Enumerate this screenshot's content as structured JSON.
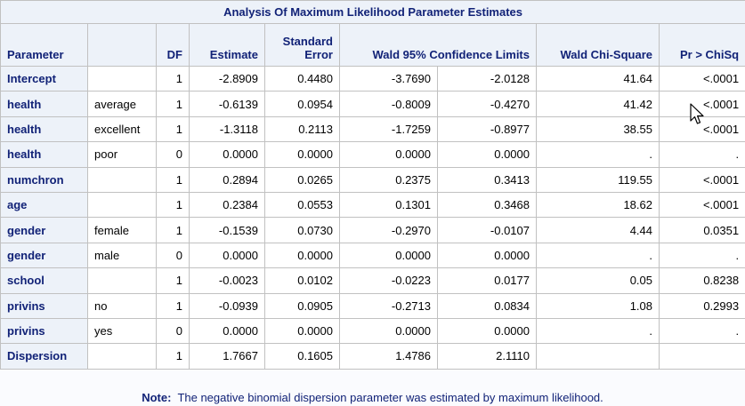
{
  "table": {
    "title": "Analysis Of Maximum Likelihood Parameter Estimates",
    "headers": {
      "parameter": "Parameter",
      "level": "",
      "df": "DF",
      "estimate": "Estimate",
      "std_error_line1": "Standard",
      "std_error_line2": "Error",
      "wald_ci": "Wald 95% Confidence Limits",
      "wald_chisq": "Wald Chi-Square",
      "pr_chisq": "Pr > ChiSq"
    },
    "rows": [
      {
        "parameter": "Intercept",
        "level": "",
        "df": "1",
        "estimate": "-2.8909",
        "std_error": "0.4480",
        "lower": "-3.7690",
        "upper": "-2.0128",
        "chisq": "41.64",
        "p": "<.0001"
      },
      {
        "parameter": "health",
        "level": "average",
        "df": "1",
        "estimate": "-0.6139",
        "std_error": "0.0954",
        "lower": "-0.8009",
        "upper": "-0.4270",
        "chisq": "41.42",
        "p": "<.0001"
      },
      {
        "parameter": "health",
        "level": "excellent",
        "df": "1",
        "estimate": "-1.3118",
        "std_error": "0.2113",
        "lower": "-1.7259",
        "upper": "-0.8977",
        "chisq": "38.55",
        "p": "<.0001"
      },
      {
        "parameter": "health",
        "level": "poor",
        "df": "0",
        "estimate": "0.0000",
        "std_error": "0.0000",
        "lower": "0.0000",
        "upper": "0.0000",
        "chisq": ".",
        "p": "."
      },
      {
        "parameter": "numchron",
        "level": "",
        "df": "1",
        "estimate": "0.2894",
        "std_error": "0.0265",
        "lower": "0.2375",
        "upper": "0.3413",
        "chisq": "119.55",
        "p": "<.0001"
      },
      {
        "parameter": "age",
        "level": "",
        "df": "1",
        "estimate": "0.2384",
        "std_error": "0.0553",
        "lower": "0.1301",
        "upper": "0.3468",
        "chisq": "18.62",
        "p": "<.0001"
      },
      {
        "parameter": "gender",
        "level": "female",
        "df": "1",
        "estimate": "-0.1539",
        "std_error": "0.0730",
        "lower": "-0.2970",
        "upper": "-0.0107",
        "chisq": "4.44",
        "p": "0.0351"
      },
      {
        "parameter": "gender",
        "level": "male",
        "df": "0",
        "estimate": "0.0000",
        "std_error": "0.0000",
        "lower": "0.0000",
        "upper": "0.0000",
        "chisq": ".",
        "p": "."
      },
      {
        "parameter": "school",
        "level": "",
        "df": "1",
        "estimate": "-0.0023",
        "std_error": "0.0102",
        "lower": "-0.0223",
        "upper": "0.0177",
        "chisq": "0.05",
        "p": "0.8238"
      },
      {
        "parameter": "privins",
        "level": "no",
        "df": "1",
        "estimate": "-0.0939",
        "std_error": "0.0905",
        "lower": "-0.2713",
        "upper": "0.0834",
        "chisq": "1.08",
        "p": "0.2993"
      },
      {
        "parameter": "privins",
        "level": "yes",
        "df": "0",
        "estimate": "0.0000",
        "std_error": "0.0000",
        "lower": "0.0000",
        "upper": "0.0000",
        "chisq": ".",
        "p": "."
      },
      {
        "parameter": "Dispersion",
        "level": "",
        "df": "1",
        "estimate": "1.7667",
        "std_error": "0.1605",
        "lower": "1.4786",
        "upper": "2.1110",
        "chisq": "",
        "p": ""
      }
    ]
  },
  "note": {
    "label": "Note:",
    "text": "The negative binomial dispersion parameter was estimated by maximum likelihood."
  },
  "colors": {
    "header_bg": "#edf2f9",
    "header_text": "#112277",
    "border": "#c1c1c1"
  },
  "icons": {
    "cursor": "mouse-pointer-icon"
  }
}
